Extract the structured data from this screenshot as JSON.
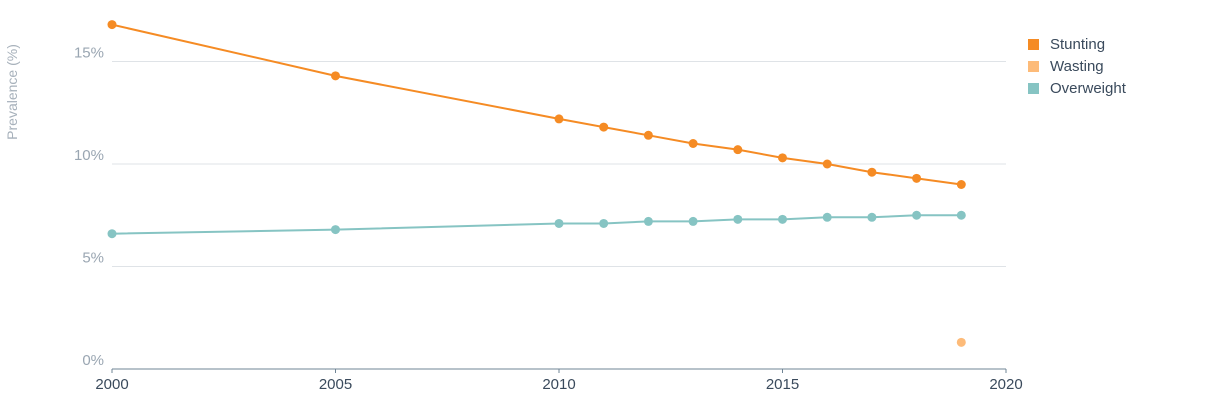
{
  "chart_data": {
    "type": "line",
    "title": "",
    "xlabel": "",
    "ylabel": "Prevalence (%)",
    "xlim": [
      2000,
      2020
    ],
    "ylim": [
      0,
      18
    ],
    "x_ticks": [
      2000,
      2005,
      2010,
      2015,
      2020
    ],
    "x_tick_labels": [
      "2000",
      "2005",
      "2010",
      "2015",
      "2020"
    ],
    "y_ticks": [
      0,
      5,
      10,
      15
    ],
    "y_tick_labels": [
      "0%",
      "5%",
      "10%",
      "15%"
    ],
    "grid": true,
    "legend_position": "top-right",
    "series": [
      {
        "name": "Stunting",
        "color": "#f58b24",
        "points": [
          [
            2000,
            16.8
          ],
          [
            2005,
            14.3
          ],
          [
            2010,
            12.2
          ],
          [
            2011,
            11.8
          ],
          [
            2012,
            11.4
          ],
          [
            2013,
            11.0
          ],
          [
            2014,
            10.7
          ],
          [
            2015,
            10.3
          ],
          [
            2016,
            10.0
          ],
          [
            2017,
            9.6
          ],
          [
            2018,
            9.3
          ],
          [
            2019,
            9.0
          ]
        ],
        "connected": true
      },
      {
        "name": "Wasting",
        "color": "#fdbb79",
        "points": [
          [
            2019,
            1.3
          ]
        ],
        "connected": false
      },
      {
        "name": "Overweight",
        "color": "#86c4c3",
        "points": [
          [
            2000,
            6.6
          ],
          [
            2005,
            6.8
          ],
          [
            2010,
            7.1
          ],
          [
            2011,
            7.1
          ],
          [
            2012,
            7.2
          ],
          [
            2013,
            7.2
          ],
          [
            2014,
            7.3
          ],
          [
            2015,
            7.3
          ],
          [
            2016,
            7.4
          ],
          [
            2017,
            7.4
          ],
          [
            2018,
            7.5
          ],
          [
            2019,
            7.5
          ]
        ],
        "connected": true
      }
    ]
  }
}
